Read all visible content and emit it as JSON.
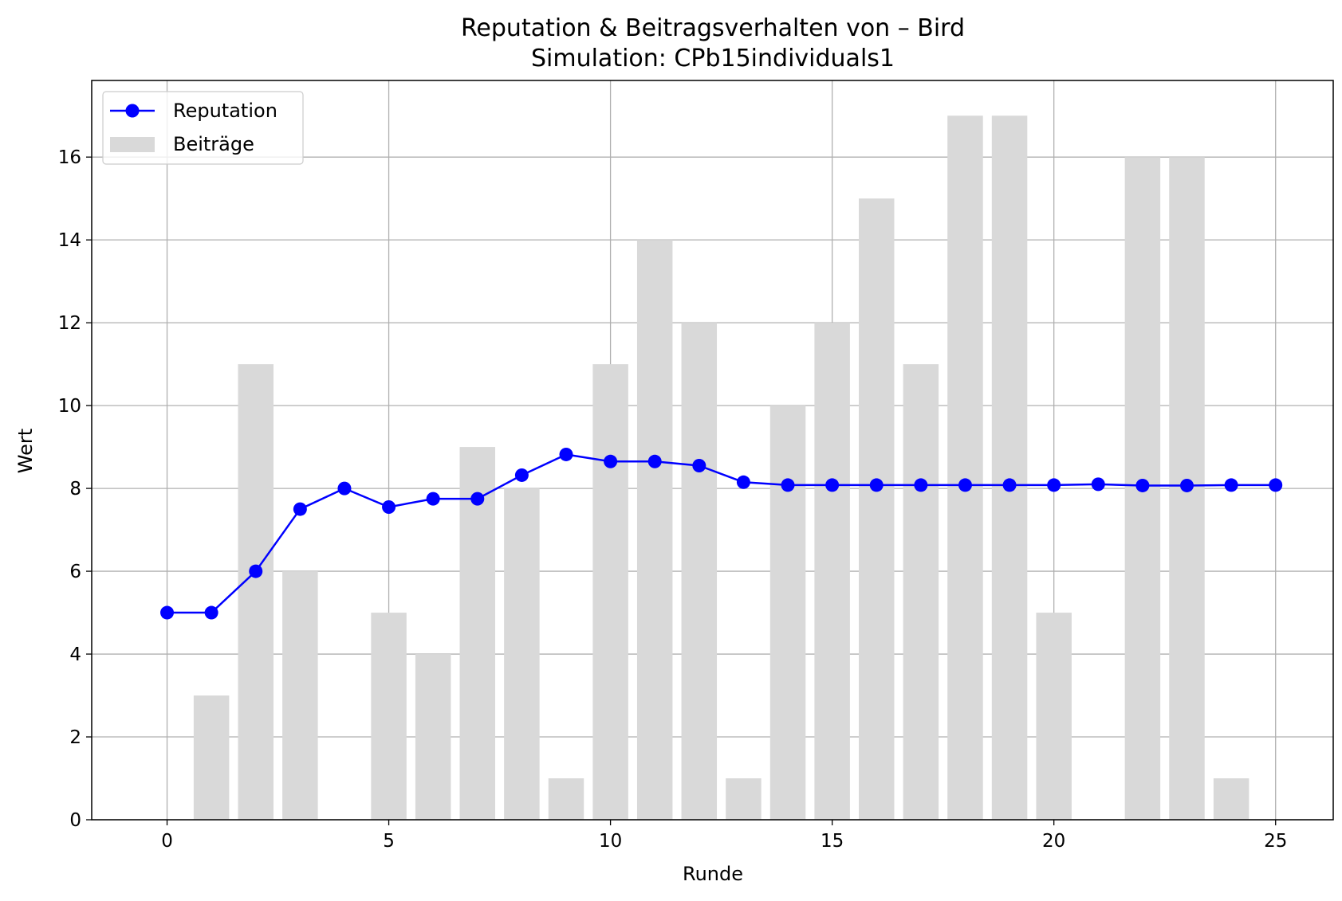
{
  "chart_data": {
    "type": "bar",
    "title": "Reputation & Beitragsverhalten von – Bird",
    "subtitle": "Simulation: CPb15individuals1",
    "xlabel": "Runde",
    "ylabel": "Wert",
    "xlim": [
      -1.7,
      26.3
    ],
    "ylim": [
      0,
      17.85
    ],
    "x_ticks": [
      0,
      5,
      10,
      15,
      20,
      25
    ],
    "y_ticks": [
      0,
      2,
      4,
      6,
      8,
      10,
      12,
      14,
      16
    ],
    "grid": true,
    "legend_position": "top-left",
    "x": [
      0,
      1,
      2,
      3,
      4,
      5,
      6,
      7,
      8,
      9,
      10,
      11,
      12,
      13,
      14,
      15,
      16,
      17,
      18,
      19,
      20,
      21,
      22,
      23,
      24,
      25
    ],
    "series": [
      {
        "name": "Reputation",
        "kind": "line",
        "color": "#0000ff",
        "values": [
          5.0,
          5.0,
          6.0,
          7.5,
          8.0,
          7.55,
          7.75,
          7.75,
          8.32,
          8.82,
          8.65,
          8.65,
          8.55,
          8.15,
          8.08,
          8.08,
          8.08,
          8.08,
          8.08,
          8.08,
          8.08,
          8.1,
          8.07,
          8.07,
          8.08,
          8.08
        ]
      },
      {
        "name": "Beiträge",
        "kind": "bar",
        "color": "#d9d9d9",
        "values": [
          0,
          3,
          11,
          6,
          0,
          5,
          4,
          9,
          8,
          1,
          11,
          14,
          12,
          1,
          10,
          12,
          15,
          11,
          17,
          17,
          5,
          0,
          16,
          16,
          1,
          0
        ]
      }
    ]
  }
}
